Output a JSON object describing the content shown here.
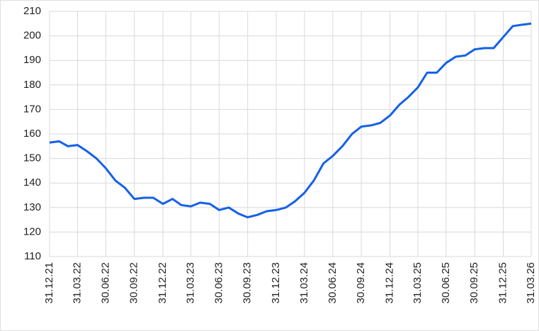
{
  "chart_data": {
    "type": "line",
    "x": [
      "31.12.21",
      "31.01.22",
      "28.02.22",
      "31.03.22",
      "30.04.22",
      "31.05.22",
      "30.06.22",
      "31.07.22",
      "31.08.22",
      "30.09.22",
      "31.10.22",
      "30.11.22",
      "31.12.22",
      "31.01.23",
      "28.02.23",
      "31.03.23",
      "30.04.23",
      "31.05.23",
      "30.06.23",
      "31.07.23",
      "31.08.23",
      "30.09.23",
      "31.10.23",
      "30.11.23",
      "31.12.23",
      "31.01.24",
      "29.02.24",
      "31.03.24",
      "30.04.24",
      "31.05.24",
      "30.06.24",
      "31.07.24",
      "31.08.24",
      "30.09.24",
      "31.10.24",
      "30.11.24",
      "31.12.24",
      "31.01.25",
      "28.02.25",
      "31.03.25",
      "30.04.25",
      "31.05.25",
      "30.06.25",
      "31.07.25",
      "31.08.25",
      "30.09.25",
      "31.10.25",
      "30.11.25",
      "31.12.25",
      "31.01.26",
      "28.02.26",
      "31.03.26"
    ],
    "series": [
      {
        "color": "#1560e8",
        "values": [
          156.5,
          157,
          155,
          155.5,
          153,
          150,
          146,
          141,
          138,
          133.5,
          134,
          134,
          131.5,
          133.5,
          131,
          130.5,
          132,
          131.5,
          129,
          130,
          127.5,
          126,
          127,
          128.5,
          129,
          130,
          132.5,
          136,
          141,
          148,
          151,
          155,
          160,
          163,
          163.5,
          164.5,
          167.5,
          172,
          175,
          179,
          185,
          185,
          189,
          191.5,
          192,
          194.5,
          195,
          195,
          199.5,
          204,
          204.5,
          205
        ]
      }
    ],
    "xlim": [
      "31.12.21",
      "31.03.26"
    ],
    "xticks": [
      "31.12.21",
      "31.03.22",
      "30.06.22",
      "30.09.22",
      "31.12.22",
      "31.03.23",
      "30.06.23",
      "30.09.23",
      "31.12.23",
      "31.03.24",
      "30.06.24",
      "30.09.24",
      "31.12.24",
      "31.03.25",
      "30.06.25",
      "30.09.25",
      "31.12.25",
      "31.03.26"
    ],
    "ylim": [
      110,
      210
    ],
    "yticks": [
      110,
      120,
      130,
      140,
      150,
      160,
      170,
      180,
      190,
      200,
      210
    ],
    "grid": true
  }
}
